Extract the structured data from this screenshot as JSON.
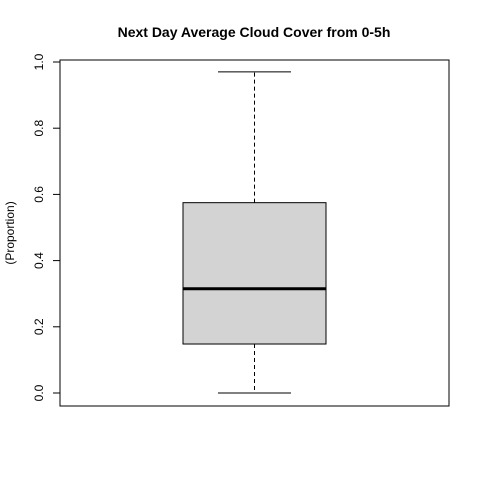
{
  "chart_data": {
    "type": "boxplot",
    "title": "Next Day Average Cloud Cover from 0-5h",
    "ylabel": "(Proportion)",
    "xlabel": "",
    "ylim": [
      -0.04,
      1.01
    ],
    "yticks": [
      0.0,
      0.2,
      0.4,
      0.6,
      0.8,
      1.0
    ],
    "ytick_labels": [
      "0.0",
      "0.2",
      "0.4",
      "0.6",
      "0.8",
      "1.0"
    ],
    "box": {
      "min": 0.0,
      "q1": 0.148,
      "median": 0.315,
      "q3": 0.575,
      "max": 0.97
    },
    "colors": {
      "box_fill": "#d3d3d3",
      "stroke": "#000000"
    },
    "grid": false
  }
}
